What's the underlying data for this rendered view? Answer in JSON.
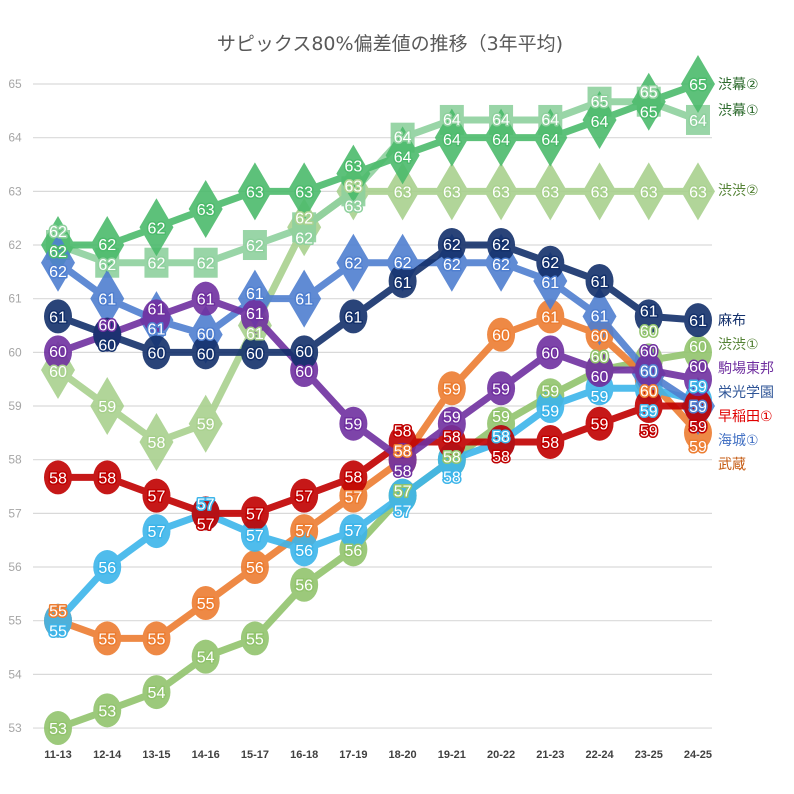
{
  "chart_data": {
    "type": "line",
    "title": "サピックス80%偏差値の推移（3年平均)",
    "xlabel": "",
    "ylabel": "",
    "ylim": [
      53,
      65
    ],
    "yticks": [
      53,
      54,
      55,
      56,
      57,
      58,
      59,
      60,
      61,
      62,
      63,
      64,
      65
    ],
    "grid": true,
    "legend": "right-end labels",
    "data_labels": "rounded integers",
    "categories": [
      "11-13",
      "12-14",
      "13-15",
      "14-16",
      "15-17",
      "16-18",
      "17-19",
      "18-20",
      "19-21",
      "20-22",
      "21-23",
      "22-24",
      "23-25",
      "24-25"
    ],
    "series": [
      {
        "name": "渋渋②",
        "color": "#a9d18e",
        "label_color": "#548235",
        "marker": "diamond",
        "values": [
          59.67,
          59.0,
          58.33,
          58.67,
          60.5,
          62.33,
          63.0,
          63.0,
          63.0,
          63.0,
          63.0,
          63.0,
          63.0,
          63.0
        ]
      },
      {
        "name": "渋幕①",
        "color": "#8fd19e",
        "label_color": "#2e6b2e",
        "marker": "square",
        "values": [
          62.0,
          61.67,
          61.67,
          61.67,
          62.0,
          62.33,
          63.0,
          64.0,
          64.33,
          64.33,
          64.33,
          64.67,
          64.67,
          64.33
        ]
      },
      {
        "name": "渋幕②",
        "color": "#4cbb6c",
        "label_color": "#2e6b2e",
        "marker": "diamond",
        "values": [
          62.0,
          62.0,
          62.33,
          62.67,
          63.0,
          63.0,
          63.33,
          63.67,
          64.0,
          64.0,
          64.0,
          64.33,
          64.67,
          65.0
        ]
      },
      {
        "name": "渋渋①",
        "color": "#92c46d",
        "label_color": "#548235",
        "marker": "circle",
        "values": [
          53.0,
          53.33,
          53.67,
          54.33,
          54.67,
          55.67,
          56.33,
          57.33,
          58.0,
          58.67,
          59.2,
          59.67,
          59.85,
          60.0
        ]
      },
      {
        "name": "武蔵",
        "color": "#ed7d31",
        "label_color": "#c55a11",
        "marker": "circle",
        "values": [
          55.0,
          54.67,
          54.67,
          55.33,
          56.0,
          56.67,
          57.33,
          58.0,
          59.33,
          60.33,
          60.67,
          60.33,
          59.5,
          58.5
        ]
      },
      {
        "name": "栄光学園",
        "color": "#3db5ea",
        "label_color": "#2f5597",
        "marker": "circle",
        "values": [
          55.0,
          56.0,
          56.67,
          57.0,
          56.6,
          56.33,
          56.67,
          57.33,
          58.0,
          58.33,
          59.0,
          59.33,
          59.33,
          59.1
        ]
      },
      {
        "name": "海城①",
        "color": "#4f7fd0",
        "label_color": "#4472c4",
        "marker": "diamond",
        "values": [
          61.67,
          61.0,
          60.6,
          60.33,
          61.0,
          61.0,
          61.67,
          61.67,
          61.67,
          61.67,
          61.33,
          60.67,
          59.6,
          59.0
        ]
      },
      {
        "name": "早稲田①",
        "color": "#c00000",
        "label_color": "#e00000",
        "marker": "circle",
        "values": [
          57.67,
          57.67,
          57.33,
          57.0,
          57.0,
          57.33,
          57.67,
          58.33,
          58.33,
          58.33,
          58.33,
          58.67,
          59.0,
          59.0
        ]
      },
      {
        "name": "駒場東邦",
        "color": "#7030a0",
        "label_color": "#7030a0",
        "marker": "circle",
        "values": [
          60.0,
          60.33,
          60.67,
          61.0,
          60.67,
          59.67,
          58.67,
          58.0,
          58.67,
          59.33,
          60.0,
          59.67,
          59.67,
          59.5
        ]
      },
      {
        "name": "麻布",
        "color": "#13306b",
        "label_color": "#13306b",
        "marker": "circle",
        "values": [
          60.67,
          60.33,
          60.0,
          60.0,
          60.0,
          60.0,
          60.67,
          61.33,
          62.0,
          62.0,
          61.67,
          61.33,
          60.67,
          60.6
        ]
      }
    ],
    "end_label_order": [
      "渋幕②",
      "渋幕①",
      "渋渋②",
      "麻布",
      "渋渋①",
      "駒場東邦",
      "栄光学園",
      "早稲田①",
      "海城①",
      "武蔵"
    ]
  }
}
